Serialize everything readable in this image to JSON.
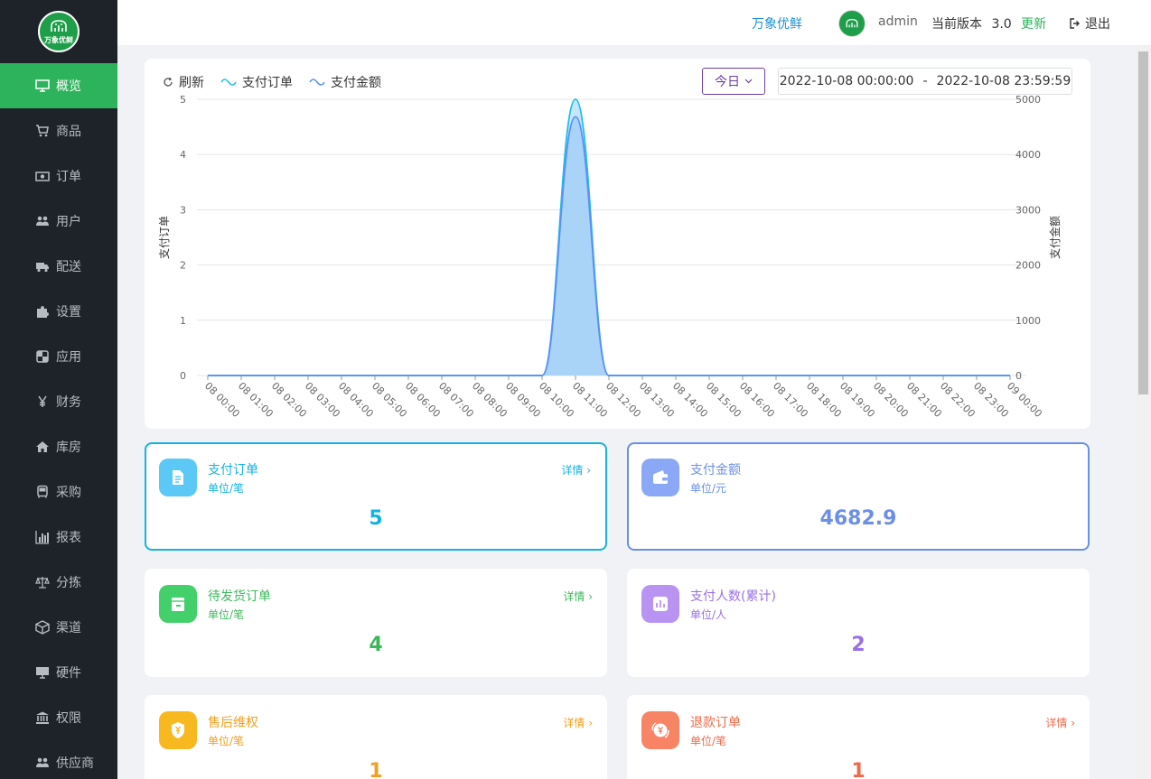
{
  "sidebar": {
    "logo_text": "万象优鲜",
    "items": [
      {
        "label": "概览",
        "icon": "monitor-icon",
        "active": true
      },
      {
        "label": "商品",
        "icon": "cart-icon"
      },
      {
        "label": "订单",
        "icon": "money-icon"
      },
      {
        "label": "用户",
        "icon": "users-icon"
      },
      {
        "label": "配送",
        "icon": "truck-icon"
      },
      {
        "label": "设置",
        "icon": "puzzle-icon"
      },
      {
        "label": "应用",
        "icon": "apps-icon"
      },
      {
        "label": "财务",
        "icon": "yen-icon"
      },
      {
        "label": "库房",
        "icon": "home-icon"
      },
      {
        "label": "采购",
        "icon": "bus-icon"
      },
      {
        "label": "报表",
        "icon": "bar-chart-icon"
      },
      {
        "label": "分拣",
        "icon": "scale-icon"
      },
      {
        "label": "渠道",
        "icon": "cube-icon"
      },
      {
        "label": "硬件",
        "icon": "desktop-icon"
      },
      {
        "label": "权限",
        "icon": "bank-icon"
      },
      {
        "label": "供应商",
        "icon": "supplier-icon"
      }
    ]
  },
  "header": {
    "shop_name": "万象优鲜",
    "username": "admin",
    "version_label": "当前版本",
    "version": "3.0",
    "update_label": "更新",
    "logout_label": "退出"
  },
  "toolbar": {
    "refresh_label": "刷新",
    "legend_orders": "支付订单",
    "legend_amount": "支付金额",
    "period_label": "今日",
    "date_start": "2022-10-08 00:00:00",
    "date_sep": "-",
    "date_end": "2022-10-08 23:59:59"
  },
  "chart_data": {
    "type": "area",
    "ylabel_left": "支付订单",
    "ylabel_right": "支付金额",
    "y_left_ticks": [
      "0",
      "1",
      "2",
      "3",
      "4",
      "5"
    ],
    "y_right_ticks": [
      "0",
      "1000",
      "2000",
      "3000",
      "4000",
      "5000"
    ],
    "ylim_left": [
      0,
      5
    ],
    "ylim_right": [
      0,
      5000
    ],
    "x": [
      "08 00:00",
      "08 01:00",
      "08 02:00",
      "08 03:00",
      "08 04:00",
      "08 05:00",
      "08 06:00",
      "08 07:00",
      "08 08:00",
      "08 09:00",
      "08 10:00",
      "08 11:00",
      "08 12:00",
      "08 13:00",
      "08 14:00",
      "08 15:00",
      "08 16:00",
      "08 17:00",
      "08 18:00",
      "08 19:00",
      "08 20:00",
      "08 21:00",
      "08 22:00",
      "08 23:00",
      "09 00:00"
    ],
    "series": [
      {
        "name": "支付订单",
        "axis": "left",
        "color": "#1ec0e8",
        "values": [
          0,
          0,
          0,
          0,
          0,
          0,
          0,
          0,
          0,
          0,
          0,
          5,
          0,
          0,
          0,
          0,
          0,
          0,
          0,
          0,
          0,
          0,
          0,
          0,
          0
        ]
      },
      {
        "name": "支付金额",
        "axis": "right",
        "color": "#5b8ff9",
        "values": [
          0,
          0,
          0,
          0,
          0,
          0,
          0,
          0,
          0,
          0,
          0,
          4682.9,
          0,
          0,
          0,
          0,
          0,
          0,
          0,
          0,
          0,
          0,
          0,
          0,
          0
        ]
      }
    ]
  },
  "stats": [
    {
      "title": "支付订单",
      "unit": "单位/笔",
      "value": "5",
      "detail": "详情",
      "color": "#14b2e2",
      "icon_bg": "#5bc8f5",
      "icon": "document-icon",
      "selected": true
    },
    {
      "title": "支付金额",
      "unit": "单位/元",
      "value": "4682.9",
      "detail": "",
      "color": "#6b8fe8",
      "icon_bg": "#8aa8f5",
      "icon": "wallet-icon",
      "selected": true
    },
    {
      "title": "待发货订单",
      "unit": "单位/笔",
      "value": "4",
      "detail": "详情",
      "color": "#3cb85c",
      "icon_bg": "#43d06b",
      "icon": "package-icon",
      "selected": false
    },
    {
      "title": "支付人数(累计)",
      "unit": "单位/人",
      "value": "2",
      "detail": "",
      "color": "#9a6fe8",
      "icon_bg": "#b893f2",
      "icon": "bar-stat-icon",
      "selected": false
    },
    {
      "title": "售后维权",
      "unit": "单位/笔",
      "value": "1",
      "detail": "详情",
      "color": "#f0a020",
      "icon_bg": "#f8b820",
      "icon": "shield-yen-icon",
      "selected": false
    },
    {
      "title": "退款订单",
      "unit": "单位/笔",
      "value": "1",
      "detail": "详情",
      "color": "#f06a4a",
      "icon_bg": "#f88466",
      "icon": "refund-icon",
      "selected": false
    }
  ]
}
